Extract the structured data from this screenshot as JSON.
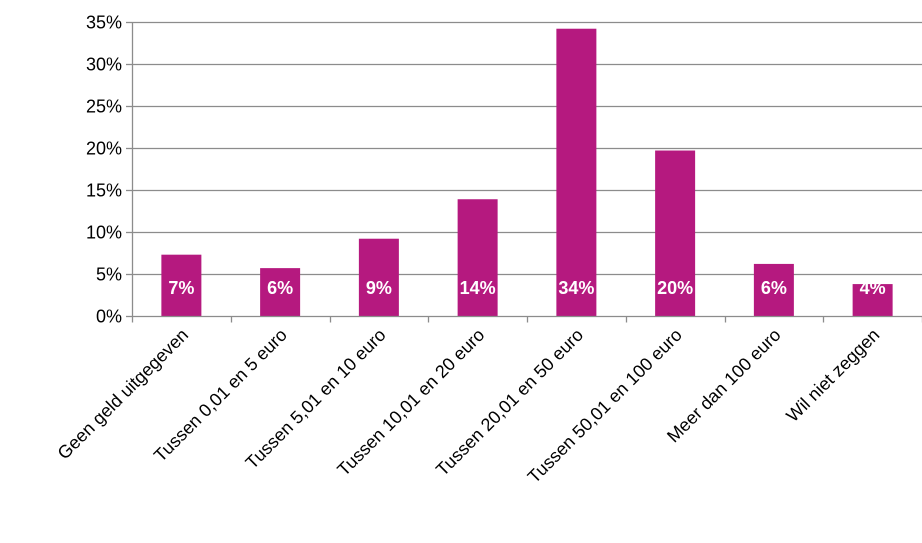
{
  "chart_data": {
    "type": "bar",
    "title": "",
    "xlabel": "",
    "ylabel": "",
    "categories": [
      "Geen geld uitgegeven",
      "Tussen 0,01 en 5 euro",
      "Tussen 5,01 en 10 euro",
      "Tussen 10,01 en 20 euro",
      "Tussen 20,01 en 50 euro",
      "Tussen 50,01 en 100 euro",
      "Meer dan 100 euro",
      "Wil niet zeggen"
    ],
    "values": [
      7.3,
      5.7,
      9.2,
      13.9,
      34.2,
      19.7,
      6.2,
      3.8
    ],
    "data_labels": [
      "7%",
      "6%",
      "9%",
      "14%",
      "34%",
      "20%",
      "6%",
      "4%"
    ],
    "ylim": [
      0,
      35
    ],
    "y_ticks": [
      0,
      5,
      10,
      15,
      20,
      25,
      30,
      35
    ],
    "y_tick_labels": [
      "0%",
      "5%",
      "10%",
      "15%",
      "20%",
      "25%",
      "30%",
      "35%"
    ],
    "grid": true,
    "legend": "none",
    "bar_color": "#b5197f",
    "grid_color": "#8c8c8c",
    "axis_color": "#8c8c8c"
  }
}
